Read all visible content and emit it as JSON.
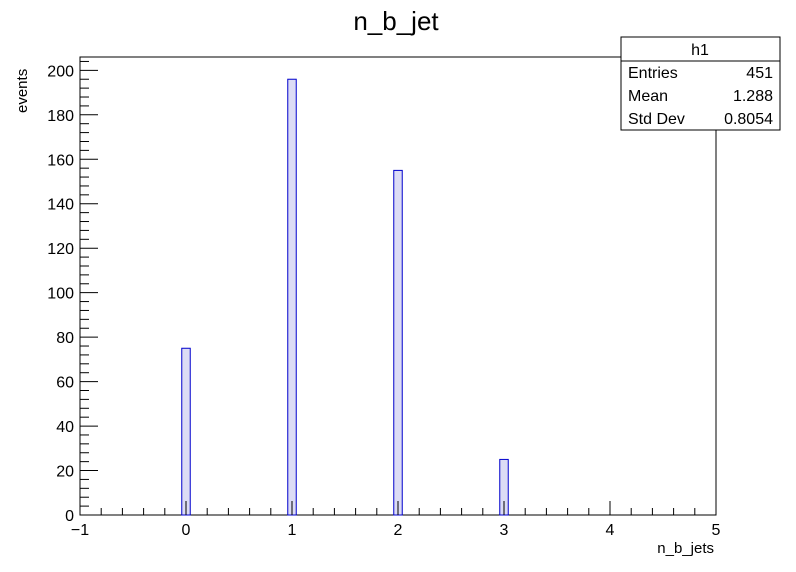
{
  "chart_data": {
    "type": "bar",
    "title": "n_b_jet",
    "xlabel": "n_b_jets",
    "ylabel": "events",
    "xlim": [
      -1,
      5
    ],
    "ylim": [
      0,
      206
    ],
    "x_ticks": [
      "−1",
      "0",
      "1",
      "2",
      "3",
      "4",
      "5"
    ],
    "y_ticks": [
      "0",
      "20",
      "40",
      "60",
      "80",
      "100",
      "120",
      "140",
      "160",
      "180",
      "200"
    ],
    "series": [
      {
        "x": [
          0,
          1,
          2,
          3
        ],
        "values": [
          75,
          196,
          155,
          25
        ]
      }
    ],
    "bar_fill": "#dcdcf5",
    "bar_edge": "#0000cc",
    "grid": false,
    "stats_box": {
      "name": "h1",
      "rows": [
        {
          "label": "Entries",
          "value": "451"
        },
        {
          "label": "Mean",
          "value": "1.288"
        },
        {
          "label": "Std Dev",
          "value": "0.8054"
        }
      ]
    }
  }
}
